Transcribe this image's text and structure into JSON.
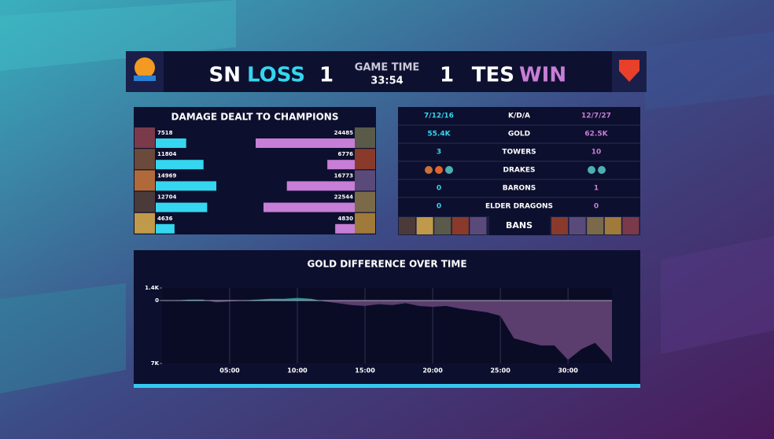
{
  "header": {
    "left_team": "SN",
    "left_result": "LOSS",
    "left_score": 1,
    "game_time_label": "GAME TIME",
    "game_time": "33:54",
    "right_score": 1,
    "right_team": "TES",
    "right_result": "WIN"
  },
  "damage": {
    "title": "DAMAGE DEALT TO CHAMPIONS",
    "left_values": [
      7518,
      11804,
      14969,
      12704,
      4636
    ],
    "left_color": "#35d6ef",
    "right_values": [
      24485,
      6776,
      16773,
      22544,
      4830
    ],
    "right_color": "#c77ed6"
  },
  "stats": {
    "rows": [
      {
        "left": "7/12/16",
        "label": "K/D/A",
        "right": "12/7/27"
      },
      {
        "left": "55.4K",
        "label": "GOLD",
        "right": "62.5K"
      },
      {
        "left": 3,
        "label": "TOWERS",
        "right": 10
      },
      {
        "label": "DRAKES"
      },
      {
        "left": 0,
        "label": "BARONS",
        "right": 1
      },
      {
        "left": 0,
        "label": "ELDER DRAGONS",
        "right": 0
      }
    ],
    "bans_label": "BANS"
  },
  "gold_chart": {
    "type": "area",
    "title": "GOLD DIFFERENCE OVER TIME",
    "x": [
      0,
      1,
      2,
      3,
      4,
      5,
      6,
      7,
      8,
      9,
      10,
      11,
      12,
      13,
      14,
      15,
      16,
      17,
      18,
      19,
      20,
      21,
      22,
      23,
      24,
      25,
      26,
      27,
      28,
      29,
      30,
      31,
      32,
      33,
      33.25
    ],
    "values": [
      0,
      0,
      100,
      100,
      -200,
      -100,
      0,
      100,
      200,
      200,
      300,
      200,
      -100,
      -300,
      -500,
      -600,
      -400,
      -500,
      -300,
      -600,
      -700,
      -600,
      -900,
      -1100,
      -1300,
      -1700,
      -4200,
      -4600,
      -5000,
      -5000,
      -6600,
      -5400,
      -4700,
      -6300,
      -6900
    ],
    "xlim": [
      0,
      33.25
    ],
    "ylim": [
      -7000,
      1400
    ],
    "xticks": [
      {
        "value": 5,
        "label": "05:00"
      },
      {
        "value": 10,
        "label": "10:00"
      },
      {
        "value": 15,
        "label": "15:00"
      },
      {
        "value": 20,
        "label": "20:00"
      },
      {
        "value": 25,
        "label": "25:00"
      },
      {
        "value": 30,
        "label": "30:00"
      }
    ],
    "yticks": [
      {
        "value": 1400,
        "label": "1.4K"
      },
      0,
      {
        "value": -7000,
        "label": "7K"
      }
    ],
    "positive_color": "#2f8f8f",
    "negative_color": "#5b3d6e",
    "grid": true
  }
}
